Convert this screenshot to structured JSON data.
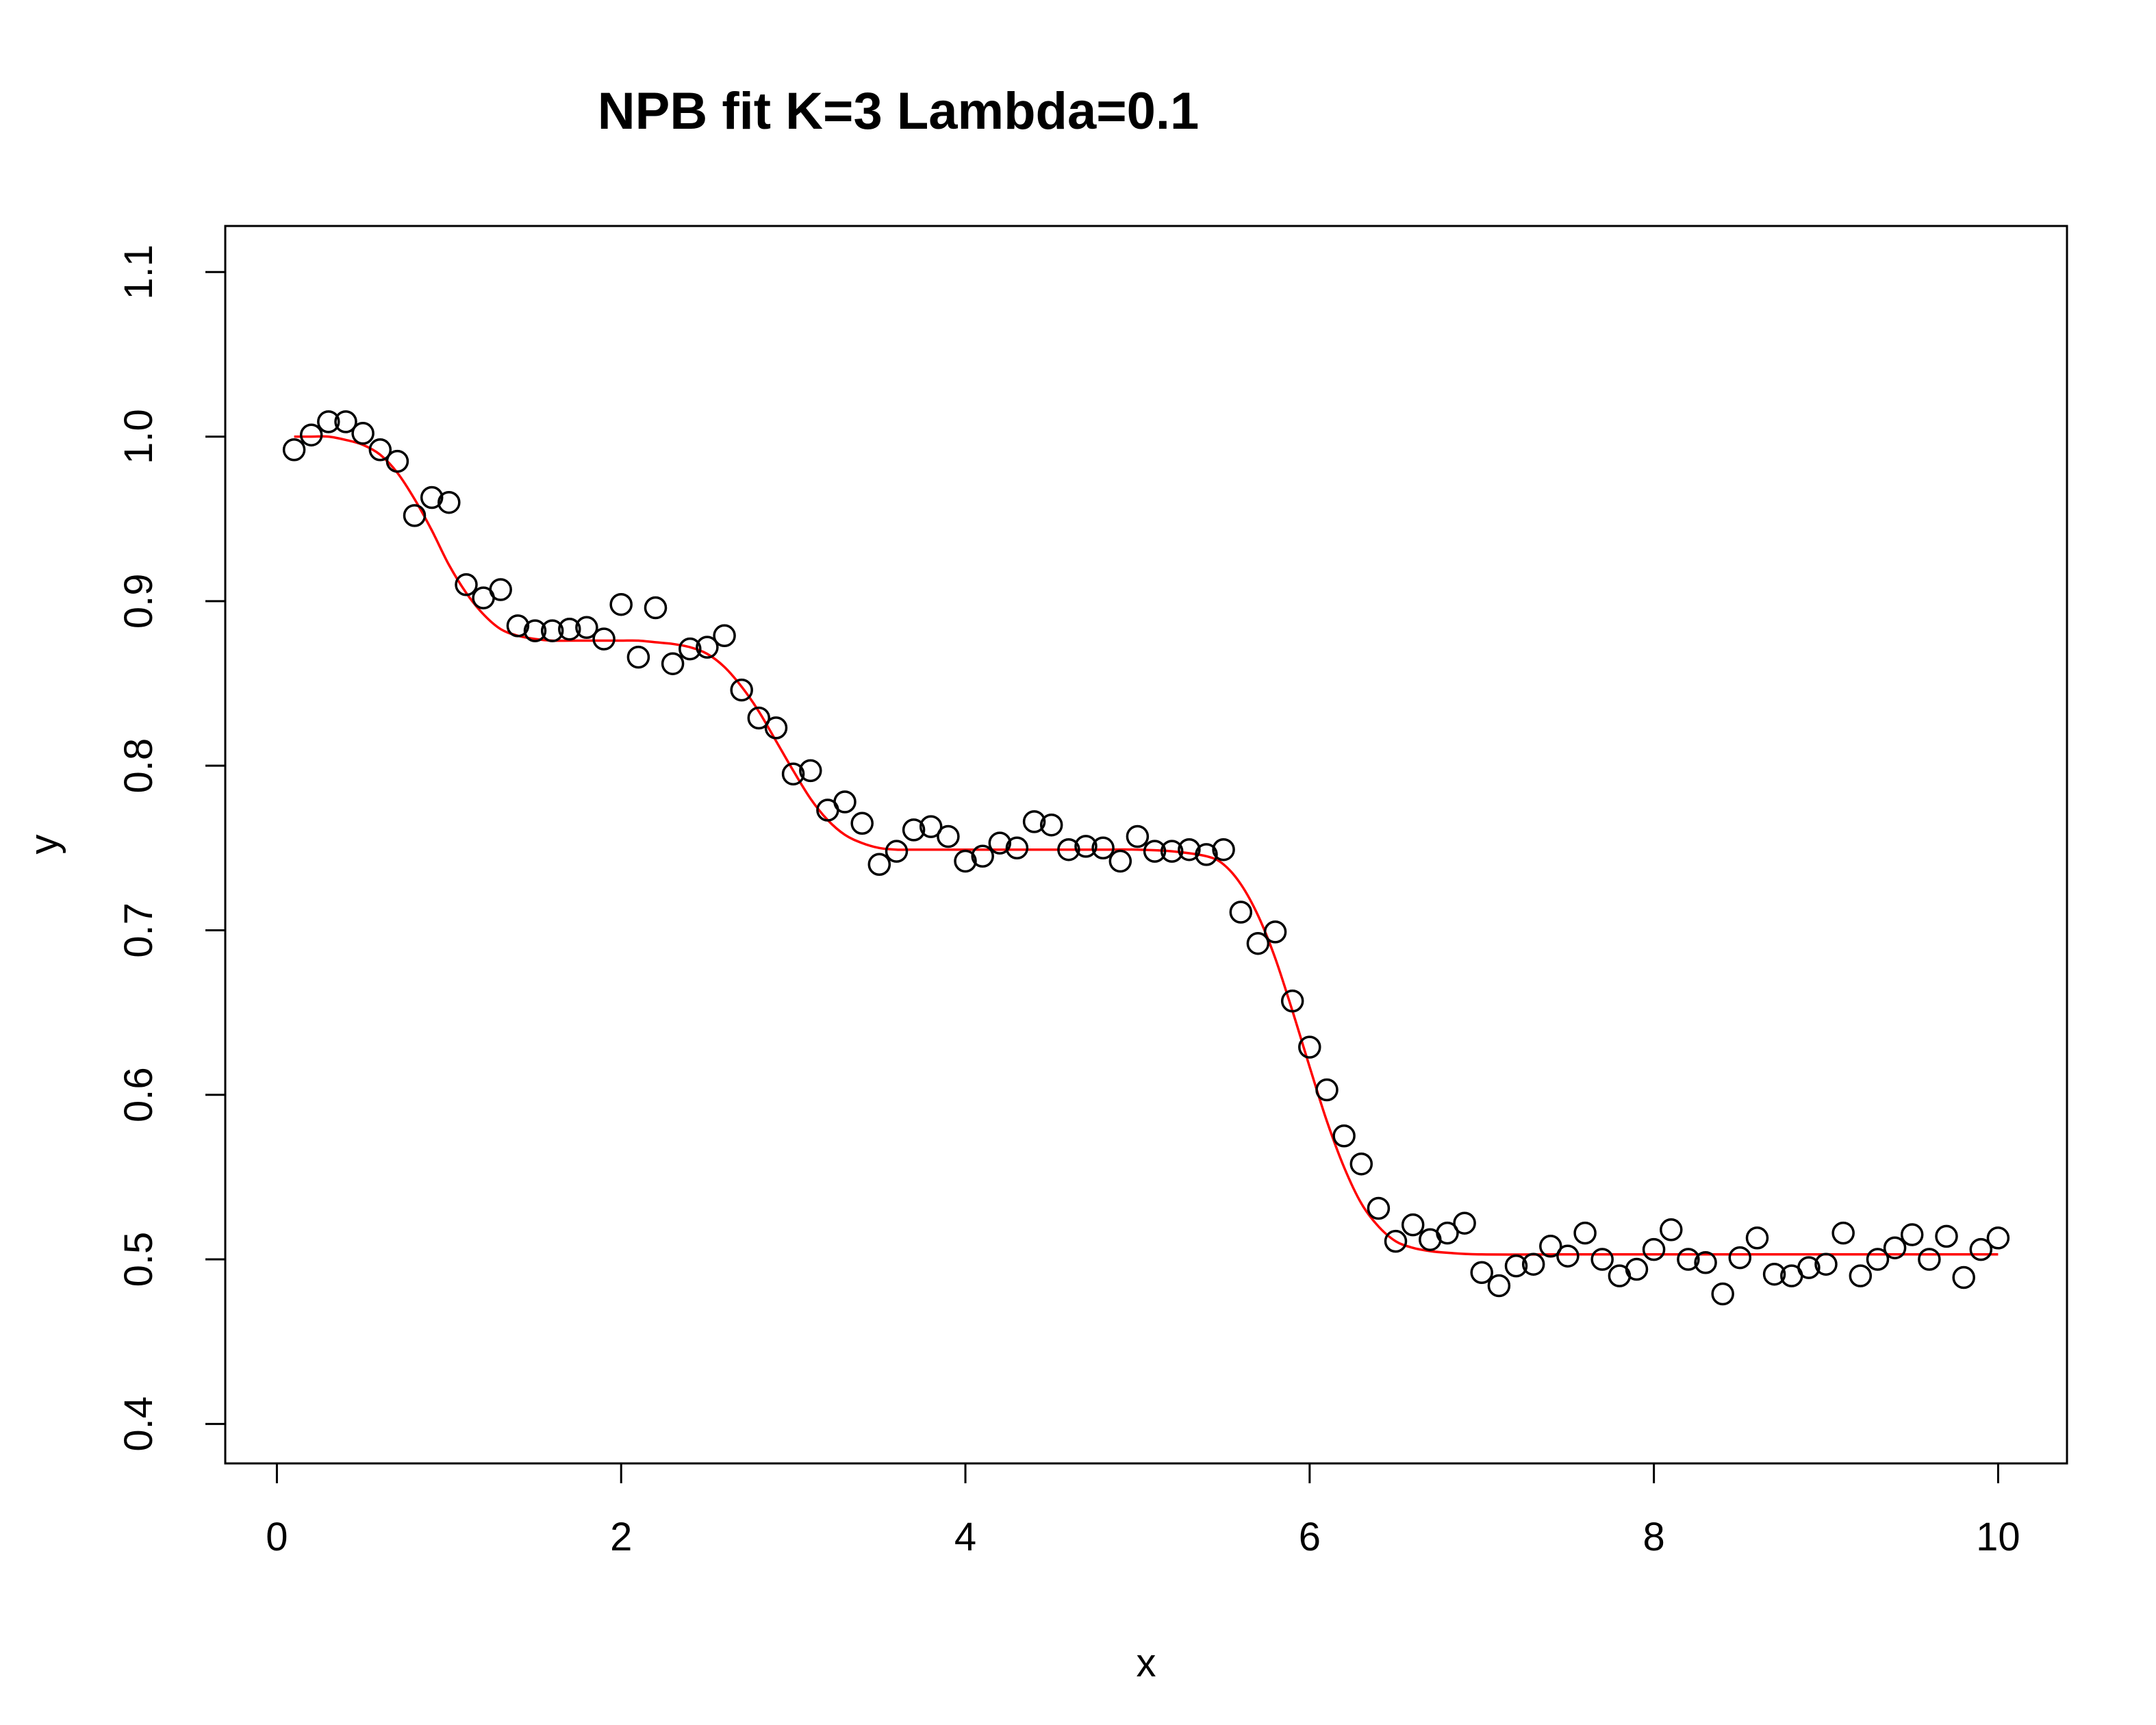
{
  "chart_data": {
    "type": "scatter",
    "title": "NPB fit K=3 Lambda=0.1",
    "xlabel": "x",
    "ylabel": "y",
    "xlim": [
      -0.3,
      10.4
    ],
    "ylim": [
      0.376,
      1.128
    ],
    "x_ticks": [
      0,
      2,
      4,
      6,
      8,
      10
    ],
    "y_ticks": [
      0.4,
      0.5,
      0.6,
      0.7,
      0.8,
      0.9,
      1.0,
      1.1
    ],
    "grid": false,
    "legend": "none",
    "colors": {
      "points": "#000000",
      "fit": "#ff0000"
    },
    "series": [
      {
        "kind": "points",
        "x": [
          0.1,
          0.2,
          0.3,
          0.4,
          0.5,
          0.6,
          0.7,
          0.8,
          0.9,
          1.0,
          1.1,
          1.2,
          1.3,
          1.4,
          1.5,
          1.6,
          1.7,
          1.8,
          1.9,
          2.0,
          2.1,
          2.2,
          2.3,
          2.4,
          2.5,
          2.6,
          2.7,
          2.8,
          2.9,
          3.0,
          3.1,
          3.2,
          3.3,
          3.4,
          3.5,
          3.6,
          3.7,
          3.8,
          3.9,
          4.0,
          4.1,
          4.2,
          4.3,
          4.4,
          4.5,
          4.6,
          4.7,
          4.8,
          4.9,
          5.0,
          5.1,
          5.2,
          5.3,
          5.4,
          5.5,
          5.6,
          5.7,
          5.8,
          5.9,
          6.0,
          6.1,
          6.2,
          6.3,
          6.4,
          6.5,
          6.6,
          6.7,
          6.8,
          6.9,
          7.0,
          7.1,
          7.2,
          7.3,
          7.4,
          7.5,
          7.6,
          7.7,
          7.8,
          7.9,
          8.0,
          8.1,
          8.2,
          8.3,
          8.4,
          8.5,
          8.6,
          8.7,
          8.8,
          8.9,
          9.0,
          9.1,
          9.2,
          9.3,
          9.4,
          9.5,
          9.6,
          9.7,
          9.8,
          9.9,
          10.0
        ],
        "y": [
          0.992,
          1.001,
          1.009,
          1.009,
          1.002,
          0.992,
          0.985,
          0.952,
          0.963,
          0.96,
          0.91,
          0.902,
          0.907,
          0.885,
          0.882,
          0.882,
          0.883,
          0.884,
          0.877,
          0.898,
          0.866,
          0.896,
          0.862,
          0.871,
          0.872,
          0.879,
          0.846,
          0.829,
          0.823,
          0.795,
          0.797,
          0.773,
          0.778,
          0.765,
          0.74,
          0.748,
          0.761,
          0.763,
          0.757,
          0.742,
          0.745,
          0.753,
          0.75,
          0.766,
          0.764,
          0.749,
          0.751,
          0.75,
          0.742,
          0.757,
          0.748,
          0.748,
          0.749,
          0.746,
          0.749,
          0.711,
          0.692,
          0.699,
          0.657,
          0.629,
          0.603,
          0.575,
          0.558,
          0.531,
          0.511,
          0.521,
          0.512,
          0.516,
          0.522,
          0.492,
          0.484,
          0.496,
          0.497,
          0.508,
          0.502,
          0.516,
          0.5,
          0.49,
          0.494,
          0.506,
          0.518,
          0.5,
          0.498,
          0.479,
          0.501,
          0.513,
          0.491,
          0.49,
          0.495,
          0.497,
          0.516,
          0.49,
          0.5,
          0.507,
          0.515,
          0.5,
          0.514,
          0.489,
          0.506,
          0.513
        ]
      },
      {
        "kind": "fit",
        "x": [
          0.1,
          0.2,
          0.3,
          0.4,
          0.5,
          0.6,
          0.7,
          0.8,
          0.9,
          1.0,
          1.1,
          1.2,
          1.3,
          1.4,
          1.5,
          1.6,
          1.7,
          1.8,
          1.9,
          2.0,
          2.1,
          2.2,
          2.3,
          2.4,
          2.5,
          2.6,
          2.7,
          2.8,
          2.9,
          3.0,
          3.1,
          3.2,
          3.3,
          3.4,
          3.5,
          3.6,
          3.7,
          3.8,
          3.9,
          4.0,
          4.2,
          4.4,
          4.6,
          4.8,
          5.0,
          5.2,
          5.4,
          5.5,
          5.6,
          5.7,
          5.8,
          5.9,
          6.0,
          6.1,
          6.2,
          6.3,
          6.4,
          6.5,
          6.6,
          6.7,
          6.8,
          7.0,
          7.5,
          8.0,
          8.5,
          9.0,
          9.5,
          10.0
        ],
        "y": [
          1.0,
          1.0,
          1.0,
          0.998,
          0.995,
          0.989,
          0.978,
          0.962,
          0.943,
          0.922,
          0.905,
          0.892,
          0.883,
          0.879,
          0.877,
          0.876,
          0.876,
          0.876,
          0.876,
          0.876,
          0.876,
          0.875,
          0.874,
          0.872,
          0.868,
          0.86,
          0.848,
          0.833,
          0.815,
          0.797,
          0.78,
          0.767,
          0.758,
          0.753,
          0.75,
          0.749,
          0.749,
          0.749,
          0.749,
          0.749,
          0.749,
          0.749,
          0.749,
          0.749,
          0.749,
          0.748,
          0.745,
          0.74,
          0.728,
          0.709,
          0.683,
          0.651,
          0.617,
          0.584,
          0.556,
          0.534,
          0.52,
          0.511,
          0.507,
          0.505,
          0.504,
          0.503,
          0.503,
          0.503,
          0.503,
          0.503,
          0.503,
          0.503
        ]
      }
    ]
  }
}
